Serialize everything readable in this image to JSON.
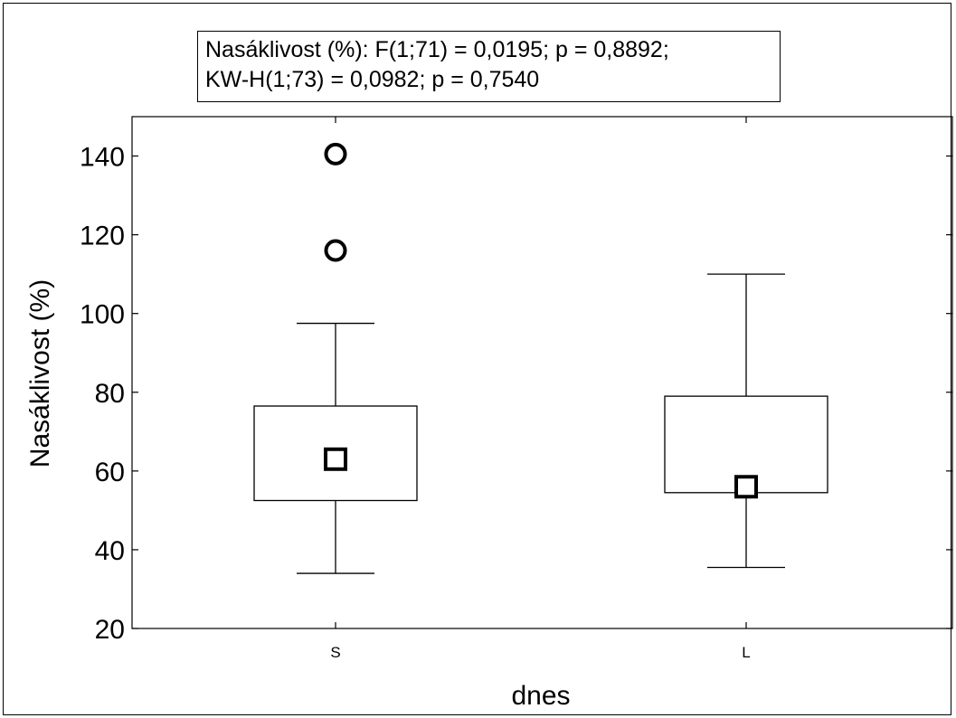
{
  "chart_data": {
    "type": "boxplot",
    "annotation_lines": [
      "Nasáklivost (%):  F(1;71) = 0,0195; p = 0,8892;",
      "KW-H(1;73) = 0,0982; p = 0,7540"
    ],
    "xlabel": "dnes",
    "ylabel": "Nasáklivost (%)",
    "categories": [
      "S",
      "L"
    ],
    "ylim": [
      20,
      150
    ],
    "yticks": [
      20,
      40,
      60,
      80,
      100,
      120,
      140
    ],
    "groups": [
      {
        "name": "S",
        "median": 63,
        "q1": 52.5,
        "q3": 76.5,
        "whisker_low": 34,
        "whisker_high": 97.5,
        "outliers": [
          140.5,
          116
        ]
      },
      {
        "name": "L",
        "median": 56,
        "q1": 54.5,
        "q3": 79,
        "whisker_low": 35.5,
        "whisker_high": 110,
        "outliers": []
      }
    ],
    "grid": false,
    "legend": "none"
  }
}
